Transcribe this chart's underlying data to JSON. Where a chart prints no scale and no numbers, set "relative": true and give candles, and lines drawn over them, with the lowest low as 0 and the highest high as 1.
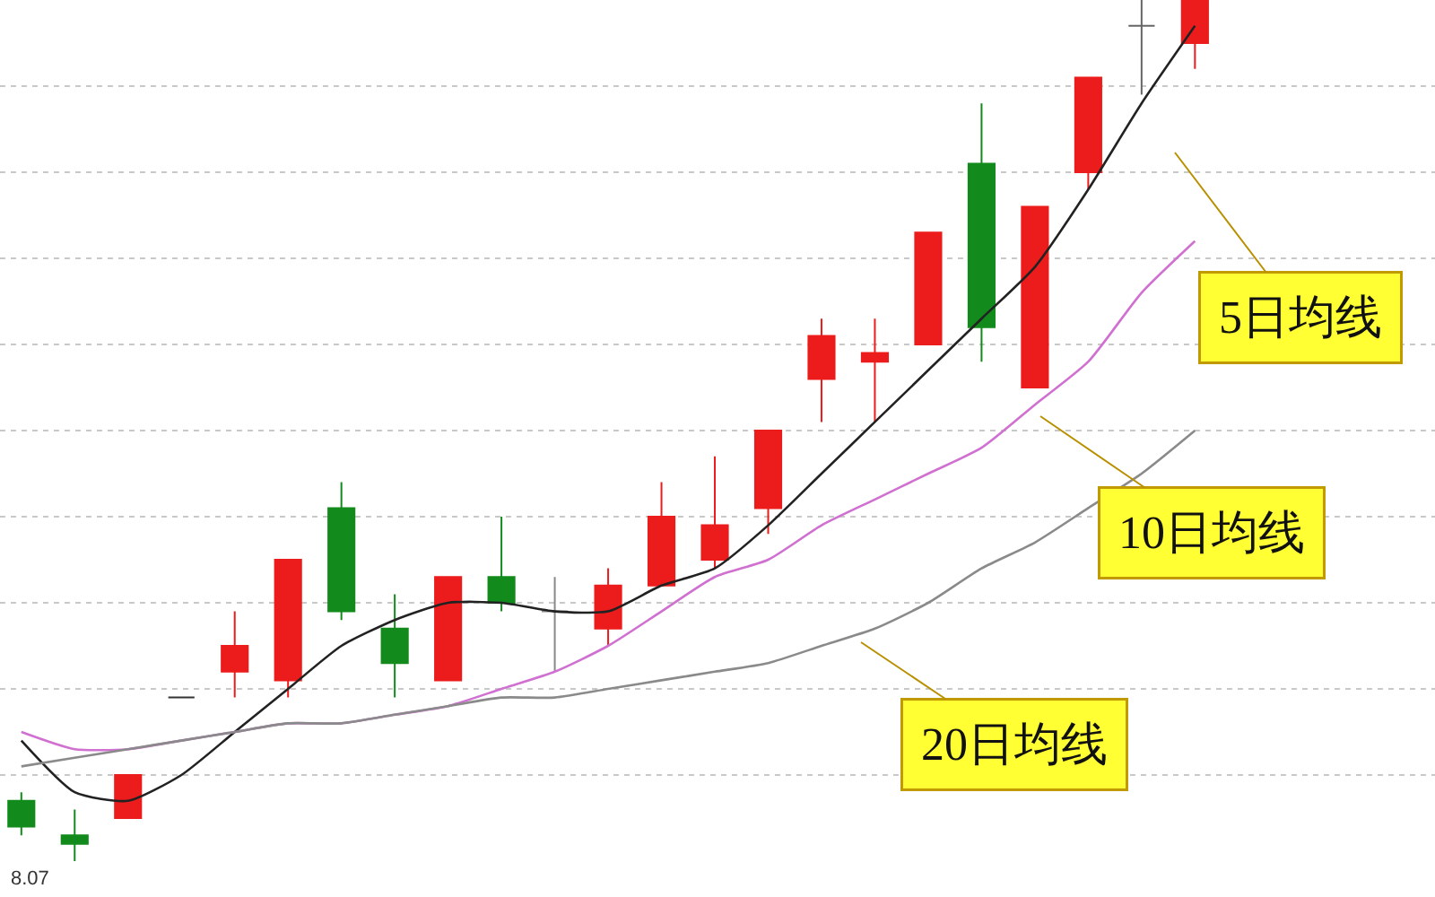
{
  "chart_data": {
    "type": "candlestick",
    "relative": true,
    "categories": [
      null,
      null,
      null,
      null,
      null,
      null,
      null,
      null,
      null,
      null,
      null,
      null,
      null,
      null,
      null,
      null,
      null,
      null,
      null,
      null,
      null,
      null,
      null
    ],
    "ohlc": [
      [
        0.07,
        0.08,
        0.03,
        0.04
      ],
      [
        0.03,
        0.06,
        0.0,
        0.02
      ],
      [
        0.05,
        0.1,
        0.05,
        0.1
      ],
      [
        0.19,
        0.19,
        0.19,
        0.19
      ],
      [
        0.22,
        0.29,
        0.19,
        0.25
      ],
      [
        0.21,
        0.35,
        0.19,
        0.35
      ],
      [
        0.41,
        0.44,
        0.28,
        0.29
      ],
      [
        0.27,
        0.31,
        0.19,
        0.23
      ],
      [
        0.21,
        0.33,
        0.21,
        0.33
      ],
      [
        0.33,
        0.4,
        0.29,
        0.3
      ],
      [
        0.29,
        0.33,
        0.22,
        0.29
      ],
      [
        0.27,
        0.34,
        0.25,
        0.32
      ],
      [
        0.32,
        0.44,
        0.32,
        0.4
      ],
      [
        0.35,
        0.47,
        0.34,
        0.39
      ],
      [
        0.41,
        0.5,
        0.38,
        0.5
      ],
      [
        0.56,
        0.63,
        0.51,
        0.61
      ],
      [
        0.58,
        0.63,
        0.51,
        0.59
      ],
      [
        0.6,
        0.73,
        0.6,
        0.73
      ],
      [
        0.81,
        0.88,
        0.58,
        0.62
      ],
      [
        0.55,
        0.76,
        0.55,
        0.76
      ],
      [
        0.8,
        0.91,
        0.78,
        0.91
      ],
      [
        0.97,
        1.0,
        0.89,
        0.97
      ],
      [
        0.95,
        1.0,
        0.92,
        1.0
      ]
    ],
    "colors": [
      "#128a1c",
      "#128a1c",
      "#ec1c1c",
      "#333333",
      "#ec1c1c",
      "#ec1c1c",
      "#128a1c",
      "#128a1c",
      "#ec1c1c",
      "#128a1c",
      "#888888",
      "#ec1c1c",
      "#ec1c1c",
      "#ec1c1c",
      "#ec1c1c",
      "#ec1c1c",
      "#ec1c1c",
      "#ec1c1c",
      "#128a1c",
      "#ec1c1c",
      "#ec1c1c",
      "#666666",
      "#ec1c1c"
    ],
    "series": [
      {
        "type": "line",
        "color": "#222222",
        "values": [
          0.14,
          0.08,
          0.07,
          0.1,
          0.15,
          0.2,
          0.25,
          0.28,
          0.3,
          0.3,
          0.29,
          0.29,
          0.32,
          0.34,
          0.39,
          0.45,
          0.51,
          0.57,
          0.63,
          0.69,
          0.78,
          0.88,
          0.97
        ]
      },
      {
        "type": "line",
        "color": "#d070d0",
        "values": [
          0.15,
          0.13,
          0.13,
          0.14,
          0.15,
          0.16,
          0.16,
          0.17,
          0.18,
          0.2,
          0.22,
          0.25,
          0.29,
          0.33,
          0.35,
          0.39,
          0.42,
          0.45,
          0.48,
          0.53,
          0.58,
          0.66,
          0.72
        ]
      },
      {
        "type": "line",
        "color": "#8a8a8a",
        "values": [
          0.11,
          0.12,
          0.13,
          0.14,
          0.15,
          0.16,
          0.16,
          0.17,
          0.18,
          0.19,
          0.19,
          0.2,
          0.21,
          0.22,
          0.23,
          0.25,
          0.27,
          0.3,
          0.34,
          0.37,
          0.41,
          0.45,
          0.5
        ]
      }
    ],
    "annotations": [
      "5日均线",
      "10日均线",
      "20日均线",
      "8.07"
    ],
    "grid": "y",
    "legend": false
  }
}
